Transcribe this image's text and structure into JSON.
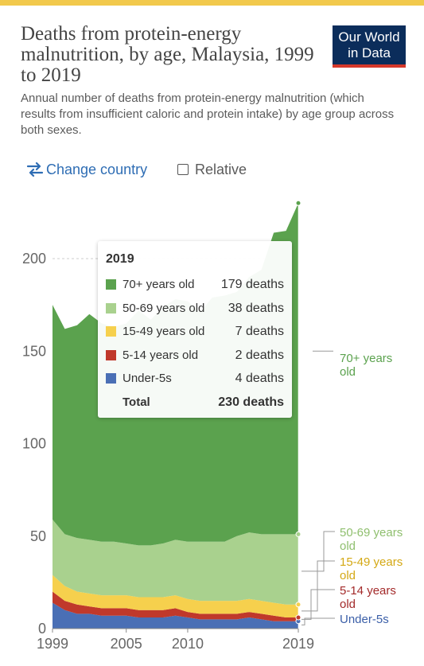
{
  "header": {
    "title": "Deaths from protein-energy malnutrition, by age, Malaysia, 1999 to 2019",
    "subtitle": "Annual number of deaths from protein-energy malnutrition (which results from insufficient caloric and protein intake) by age group across both sexes.",
    "logo_line1": "Our World",
    "logo_line2": "in Data",
    "logo_colors": {
      "background": "#0b2d5b",
      "stripe": "#d6382b"
    }
  },
  "controls": {
    "change_country_label": "Change country",
    "change_country_icon": "swap-arrows-icon",
    "relative_label": "Relative",
    "relative_checked": false
  },
  "tooltip": {
    "year": "2019",
    "rows": [
      {
        "label": "70+ years old",
        "value": "179 deaths",
        "color": "#5ba24e"
      },
      {
        "label": "50-69 years old",
        "value": "38 deaths",
        "color": "#a9d18e"
      },
      {
        "label": "15-49 years old",
        "value": "7 deaths",
        "color": "#f6d04d"
      },
      {
        "label": "5-14 years old",
        "value": "2 deaths",
        "color": "#c0392b"
      },
      {
        "label": "Under-5s",
        "value": "4 deaths",
        "color": "#4a6fb5"
      }
    ],
    "total_label": "Total",
    "total_value": "230 deaths"
  },
  "chart_data": {
    "type": "area",
    "stacked": true,
    "x": [
      1999,
      2000,
      2001,
      2002,
      2003,
      2004,
      2005,
      2006,
      2007,
      2008,
      2009,
      2010,
      2011,
      2012,
      2013,
      2014,
      2015,
      2016,
      2017,
      2018,
      2019
    ],
    "series": [
      {
        "name": "Under-5s",
        "color": "#4a6fb5",
        "values": [
          14,
          10,
          8,
          8,
          7,
          7,
          7,
          6,
          6,
          6,
          7,
          6,
          5,
          5,
          5,
          5,
          6,
          5,
          4,
          4,
          4
        ]
      },
      {
        "name": "5-14 years old",
        "color": "#c0392b",
        "values": [
          6,
          5,
          5,
          4,
          4,
          4,
          4,
          4,
          4,
          4,
          4,
          3,
          3,
          3,
          3,
          3,
          3,
          3,
          3,
          2,
          2
        ]
      },
      {
        "name": "15-49 years old",
        "color": "#f6d04d",
        "values": [
          9,
          8,
          7,
          7,
          7,
          7,
          7,
          7,
          7,
          7,
          7,
          7,
          7,
          7,
          7,
          7,
          7,
          7,
          7,
          7,
          7
        ]
      },
      {
        "name": "50-69 years old",
        "color": "#a9d18e",
        "values": [
          30,
          28,
          29,
          29,
          29,
          29,
          28,
          28,
          28,
          29,
          30,
          31,
          32,
          32,
          32,
          35,
          36,
          36,
          37,
          38,
          38
        ]
      },
      {
        "name": "70+ years old",
        "color": "#5ba24e",
        "values": [
          116,
          111,
          115,
          122,
          118,
          116,
          119,
          127,
          122,
          128,
          130,
          130,
          124,
          132,
          133,
          132,
          138,
          143,
          163,
          164,
          179
        ]
      }
    ],
    "ylim": [
      0,
      230
    ],
    "yticks": [
      0,
      50,
      100,
      150,
      200
    ],
    "xticks": [
      1999,
      2005,
      2010,
      2019
    ],
    "xlabel": "",
    "ylabel": "",
    "grid": true,
    "hover_year": 2019,
    "end_labels": [
      {
        "series": "70+ years old",
        "lines": [
          "70+ years",
          "old"
        ],
        "color": "#5ba24e",
        "anchor_value": 150
      },
      {
        "series": "50-69 years old",
        "lines": [
          "50-69 years",
          "old"
        ],
        "color": "#8fbf6e",
        "anchor_value": 31
      },
      {
        "series": "15-49 years old",
        "lines": [
          "15-49 years",
          "old"
        ],
        "color": "#d4a814",
        "anchor_value": 9.5
      },
      {
        "series": "5-14 years old",
        "lines": [
          "5-14 years",
          "old"
        ],
        "color": "#a32a2a",
        "anchor_value": 5
      },
      {
        "series": "Under-5s",
        "lines": [
          "Under-5s"
        ],
        "color": "#3b5fa8",
        "anchor_value": 2
      }
    ]
  }
}
